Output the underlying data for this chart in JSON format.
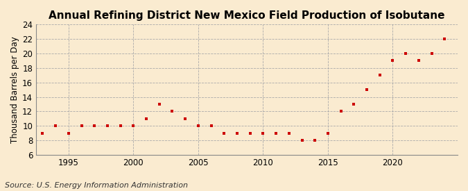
{
  "title": "Annual Refining District New Mexico Field Production of Isobutane",
  "ylabel": "Thousand Barrels per Day",
  "source": "Source: U.S. Energy Information Administration",
  "years": [
    1993,
    1994,
    1995,
    1996,
    1997,
    1998,
    1999,
    2000,
    2001,
    2002,
    2003,
    2004,
    2005,
    2006,
    2007,
    2008,
    2009,
    2010,
    2011,
    2012,
    2013,
    2014,
    2015,
    2016,
    2017,
    2018,
    2019,
    2020,
    2021,
    2022,
    2023,
    2024
  ],
  "values": [
    9,
    10,
    9,
    10,
    10,
    10,
    10,
    10,
    11,
    13,
    12,
    11,
    10,
    10,
    9,
    9,
    9,
    9,
    9,
    9,
    8,
    8,
    9,
    12,
    13,
    15,
    17,
    19,
    20,
    19,
    20,
    22
  ],
  "ylim": [
    6,
    24
  ],
  "yticks": [
    6,
    8,
    10,
    12,
    14,
    16,
    18,
    20,
    22,
    24
  ],
  "xlim": [
    1992.5,
    2025
  ],
  "xticks": [
    1995,
    2000,
    2005,
    2010,
    2015,
    2020
  ],
  "marker_color": "#cc0000",
  "marker": "s",
  "marker_size": 3.5,
  "bg_color": "#faebd0",
  "grid_color": "#aaaaaa",
  "title_fontsize": 11,
  "label_fontsize": 8.5,
  "tick_fontsize": 8.5,
  "source_fontsize": 8
}
